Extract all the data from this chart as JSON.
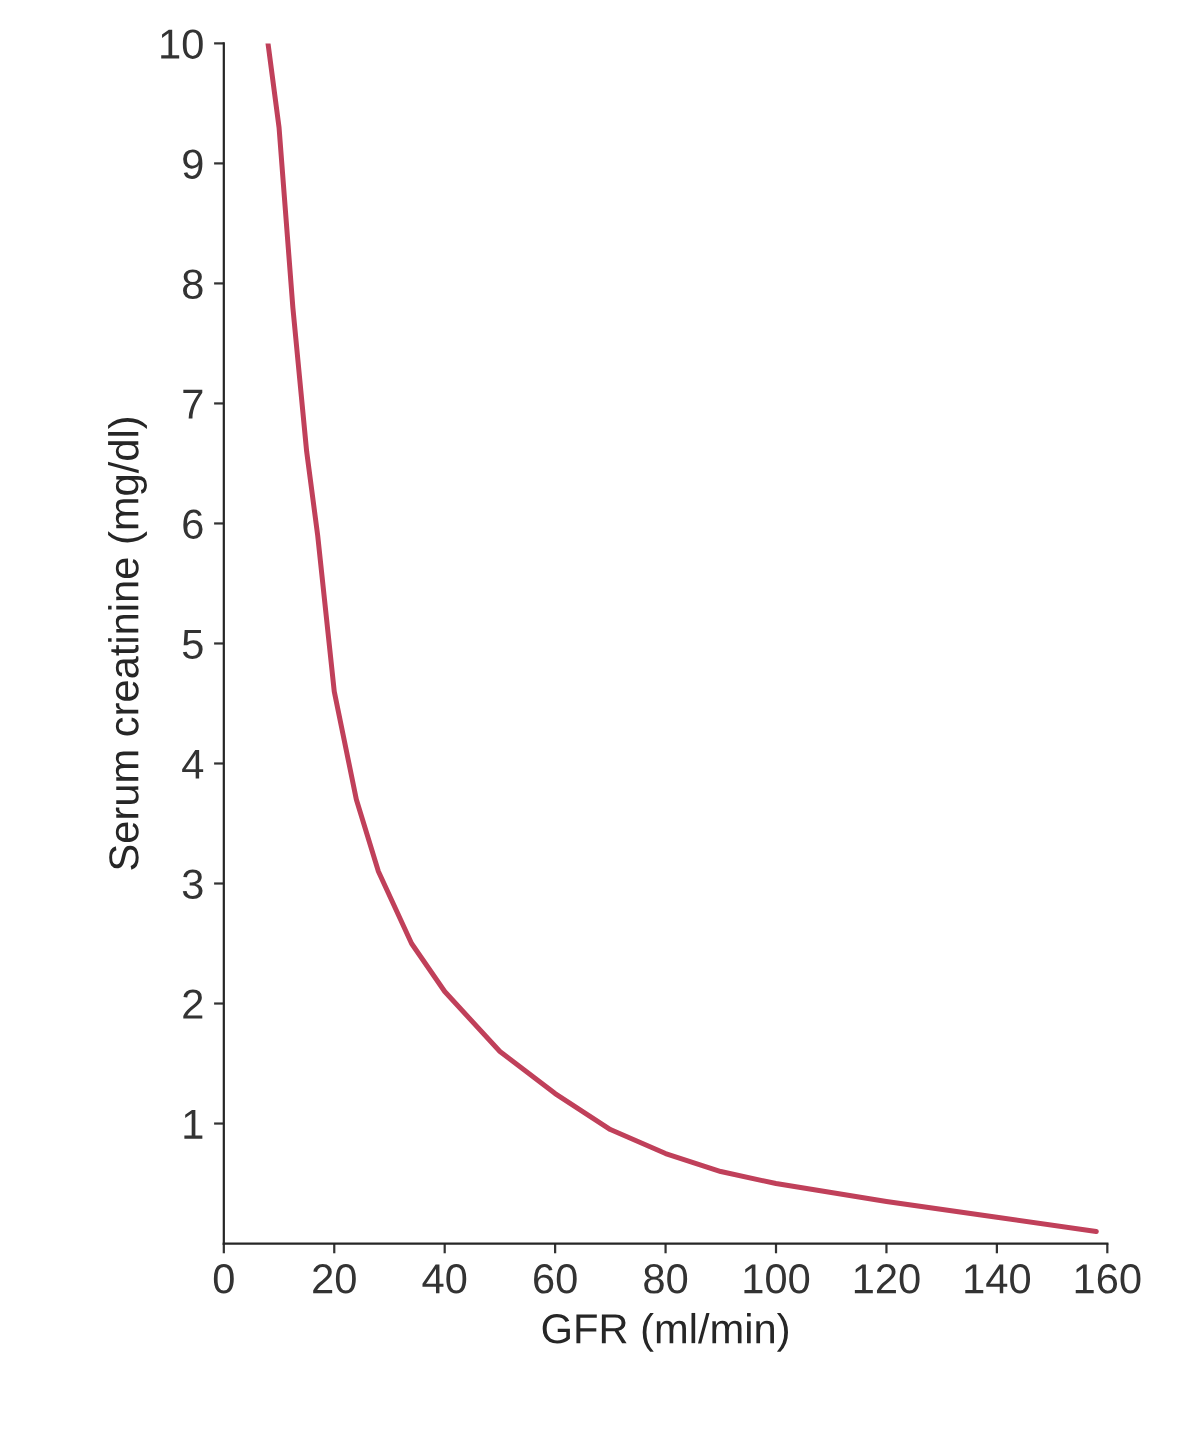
{
  "chart_data": {
    "type": "line",
    "xlabel": "GFR (ml/min)",
    "ylabel": "Serum creatinine (mg/dl)",
    "series": [
      {
        "color": "#c0405a",
        "x": [
          8,
          10,
          12.5,
          15,
          17,
          20,
          24,
          28,
          34,
          40,
          50,
          60,
          70,
          80,
          90,
          100,
          120,
          140,
          158
        ],
        "values": [
          10,
          9.3,
          7.8,
          6.6,
          5.9,
          4.6,
          3.7,
          3.1,
          2.5,
          2.1,
          1.6,
          1.25,
          0.95,
          0.75,
          0.6,
          0.5,
          0.35,
          0.22,
          0.1
        ]
      }
    ],
    "xlim": [
      0,
      160
    ],
    "xticks": [
      0,
      20,
      40,
      60,
      80,
      100,
      120,
      140,
      160
    ],
    "ylim": [
      0,
      10
    ],
    "yticks": [
      1,
      2,
      3,
      4,
      5,
      6,
      7,
      8,
      9,
      10
    ],
    "marker": "none",
    "line_style": "solid"
  }
}
